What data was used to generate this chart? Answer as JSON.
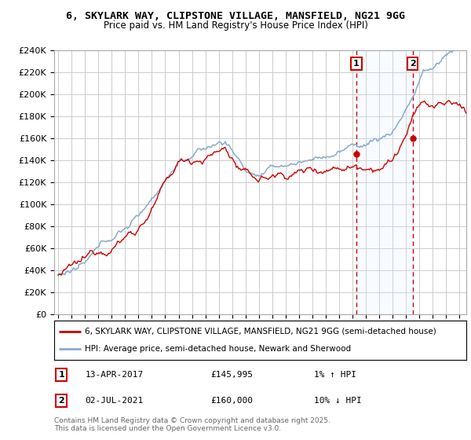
{
  "title_line1": "6, SKYLARK WAY, CLIPSTONE VILLAGE, MANSFIELD, NG21 9GG",
  "title_line2": "Price paid vs. HM Land Registry's House Price Index (HPI)",
  "legend_line1": "6, SKYLARK WAY, CLIPSTONE VILLAGE, MANSFIELD, NG21 9GG (semi-detached house)",
  "legend_line2": "HPI: Average price, semi-detached house, Newark and Sherwood",
  "footer": "Contains HM Land Registry data © Crown copyright and database right 2025.\nThis data is licensed under the Open Government Licence v3.0.",
  "sale1_date": "13-APR-2017",
  "sale1_price": "£145,995",
  "sale1_hpi": "1% ↑ HPI",
  "sale1_year": 2017.28,
  "sale1_value": 145995,
  "sale2_date": "02-JUL-2021",
  "sale2_price": "£160,000",
  "sale2_hpi": "10% ↓ HPI",
  "sale2_year": 2021.5,
  "sale2_value": 160000,
  "ylim": [
    0,
    240000
  ],
  "xlim_start": 1994.7,
  "xlim_end": 2025.5,
  "red_color": "#cc0000",
  "blue_color": "#88aacc",
  "grid_color": "#cccccc",
  "background_color": "#ffffff",
  "shaded_color": "#ddeeff",
  "title_fontsize": 9.5,
  "subtitle_fontsize": 8.5
}
